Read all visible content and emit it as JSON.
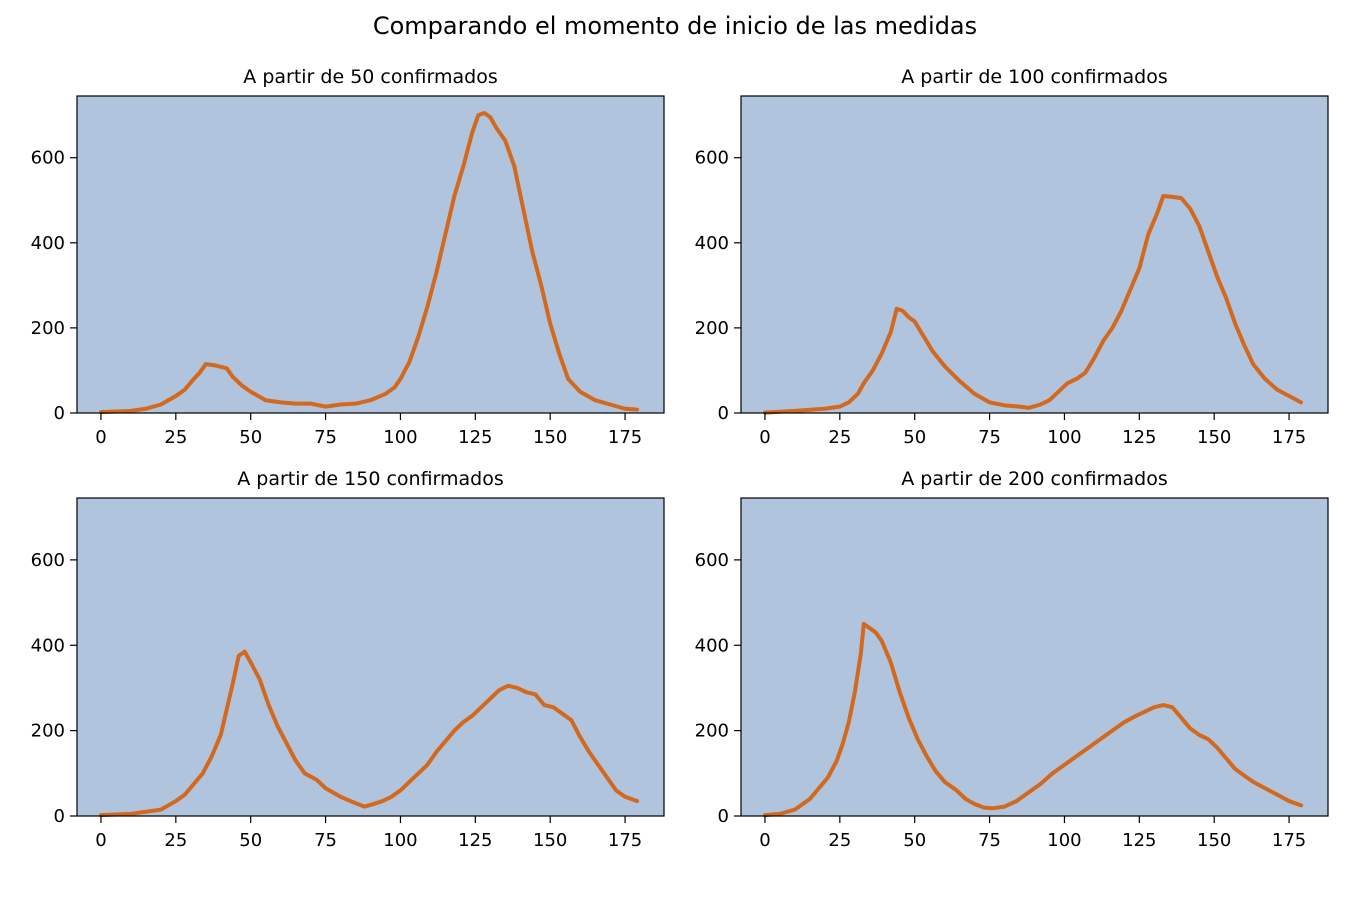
{
  "figure": {
    "title": "Comparando el momento de inicio de las medidas",
    "colors": {
      "plot_background": "#b0c4de",
      "line": "#d2691e"
    }
  },
  "chart_data": [
    {
      "type": "line",
      "title": "A partir de 50 confirmados",
      "xlabel": "",
      "ylabel": "",
      "xlim": [
        -8,
        188
      ],
      "ylim": [
        0,
        745
      ],
      "xticks": [
        0,
        25,
        50,
        75,
        100,
        125,
        150,
        175
      ],
      "yticks": [
        0,
        200,
        400,
        600
      ],
      "grid": false,
      "series": [
        {
          "points": [
            [
              0,
              2
            ],
            [
              10,
              5
            ],
            [
              15,
              10
            ],
            [
              20,
              20
            ],
            [
              25,
              40
            ],
            [
              28,
              55
            ],
            [
              31,
              80
            ],
            [
              33,
              95
            ],
            [
              35,
              115
            ],
            [
              38,
              112
            ],
            [
              42,
              105
            ],
            [
              44,
              85
            ],
            [
              47,
              65
            ],
            [
              50,
              50
            ],
            [
              55,
              30
            ],
            [
              60,
              25
            ],
            [
              65,
              22
            ],
            [
              70,
              22
            ],
            [
              75,
              15
            ],
            [
              80,
              20
            ],
            [
              85,
              22
            ],
            [
              90,
              30
            ],
            [
              95,
              45
            ],
            [
              98,
              60
            ],
            [
              100,
              80
            ],
            [
              103,
              120
            ],
            [
              106,
              180
            ],
            [
              109,
              250
            ],
            [
              112,
              330
            ],
            [
              115,
              420
            ],
            [
              118,
              510
            ],
            [
              121,
              580
            ],
            [
              124,
              660
            ],
            [
              126,
              700
            ],
            [
              128,
              705
            ],
            [
              130,
              695
            ],
            [
              132,
              670
            ],
            [
              135,
              640
            ],
            [
              138,
              580
            ],
            [
              141,
              480
            ],
            [
              144,
              380
            ],
            [
              147,
              300
            ],
            [
              150,
              210
            ],
            [
              153,
              140
            ],
            [
              156,
              80
            ],
            [
              160,
              50
            ],
            [
              165,
              30
            ],
            [
              170,
              20
            ],
            [
              175,
              10
            ],
            [
              179,
              8
            ]
          ]
        }
      ]
    },
    {
      "type": "line",
      "title": "A partir de 100 confirmados",
      "xlabel": "",
      "ylabel": "",
      "xlim": [
        -8,
        188
      ],
      "ylim": [
        0,
        745
      ],
      "xticks": [
        0,
        25,
        50,
        75,
        100,
        125,
        150,
        175
      ],
      "yticks": [
        0,
        200,
        400,
        600
      ],
      "grid": false,
      "series": [
        {
          "points": [
            [
              0,
              1
            ],
            [
              10,
              5
            ],
            [
              20,
              10
            ],
            [
              25,
              15
            ],
            [
              28,
              25
            ],
            [
              31,
              45
            ],
            [
              33,
              70
            ],
            [
              36,
              100
            ],
            [
              39,
              140
            ],
            [
              42,
              190
            ],
            [
              44,
              245
            ],
            [
              46,
              240
            ],
            [
              48,
              225
            ],
            [
              50,
              215
            ],
            [
              53,
              180
            ],
            [
              56,
              145
            ],
            [
              60,
              110
            ],
            [
              65,
              75
            ],
            [
              70,
              45
            ],
            [
              75,
              25
            ],
            [
              80,
              18
            ],
            [
              85,
              15
            ],
            [
              88,
              12
            ],
            [
              92,
              20
            ],
            [
              95,
              30
            ],
            [
              98,
              50
            ],
            [
              101,
              70
            ],
            [
              104,
              80
            ],
            [
              107,
              95
            ],
            [
              110,
              130
            ],
            [
              113,
              170
            ],
            [
              116,
              200
            ],
            [
              119,
              240
            ],
            [
              122,
              290
            ],
            [
              125,
              340
            ],
            [
              128,
              420
            ],
            [
              131,
              470
            ],
            [
              133,
              510
            ],
            [
              136,
              508
            ],
            [
              139,
              505
            ],
            [
              142,
              480
            ],
            [
              145,
              440
            ],
            [
              148,
              380
            ],
            [
              151,
              320
            ],
            [
              154,
              270
            ],
            [
              157,
              210
            ],
            [
              160,
              160
            ],
            [
              163,
              115
            ],
            [
              167,
              80
            ],
            [
              171,
              55
            ],
            [
              175,
              40
            ],
            [
              179,
              25
            ]
          ]
        }
      ]
    },
    {
      "type": "line",
      "title": "A partir de 150 confirmados",
      "xlabel": "",
      "ylabel": "",
      "xlim": [
        -8,
        188
      ],
      "ylim": [
        0,
        745
      ],
      "xticks": [
        0,
        25,
        50,
        75,
        100,
        125,
        150,
        175
      ],
      "yticks": [
        0,
        200,
        400,
        600
      ],
      "grid": false,
      "series": [
        {
          "points": [
            [
              0,
              2
            ],
            [
              10,
              5
            ],
            [
              15,
              10
            ],
            [
              20,
              15
            ],
            [
              25,
              35
            ],
            [
              28,
              50
            ],
            [
              31,
              75
            ],
            [
              34,
              100
            ],
            [
              37,
              140
            ],
            [
              40,
              190
            ],
            [
              42,
              250
            ],
            [
              44,
              310
            ],
            [
              46,
              375
            ],
            [
              48,
              385
            ],
            [
              50,
              360
            ],
            [
              53,
              320
            ],
            [
              56,
              260
            ],
            [
              59,
              210
            ],
            [
              62,
              170
            ],
            [
              65,
              130
            ],
            [
              68,
              100
            ],
            [
              72,
              85
            ],
            [
              75,
              65
            ],
            [
              80,
              45
            ],
            [
              85,
              30
            ],
            [
              88,
              22
            ],
            [
              91,
              28
            ],
            [
              94,
              35
            ],
            [
              97,
              45
            ],
            [
              100,
              60
            ],
            [
              103,
              80
            ],
            [
              106,
              100
            ],
            [
              109,
              120
            ],
            [
              112,
              150
            ],
            [
              115,
              175
            ],
            [
              118,
              200
            ],
            [
              121,
              220
            ],
            [
              124,
              235
            ],
            [
              127,
              255
            ],
            [
              130,
              275
            ],
            [
              133,
              295
            ],
            [
              136,
              305
            ],
            [
              139,
              300
            ],
            [
              142,
              290
            ],
            [
              145,
              285
            ],
            [
              148,
              260
            ],
            [
              151,
              255
            ],
            [
              154,
              240
            ],
            [
              157,
              225
            ],
            [
              160,
              185
            ],
            [
              163,
              150
            ],
            [
              166,
              120
            ],
            [
              169,
              90
            ],
            [
              172,
              60
            ],
            [
              175,
              45
            ],
            [
              179,
              35
            ]
          ]
        }
      ]
    },
    {
      "type": "line",
      "title": "A partir de 200 confirmados",
      "xlabel": "",
      "ylabel": "",
      "xlim": [
        -8,
        188
      ],
      "ylim": [
        0,
        745
      ],
      "xticks": [
        0,
        25,
        50,
        75,
        100,
        125,
        150,
        175
      ],
      "yticks": [
        0,
        200,
        400,
        600
      ],
      "grid": false,
      "series": [
        {
          "points": [
            [
              0,
              2
            ],
            [
              5,
              5
            ],
            [
              10,
              15
            ],
            [
              15,
              40
            ],
            [
              18,
              65
            ],
            [
              21,
              90
            ],
            [
              24,
              130
            ],
            [
              26,
              170
            ],
            [
              28,
              220
            ],
            [
              30,
              290
            ],
            [
              32,
              380
            ],
            [
              33,
              450
            ],
            [
              35,
              440
            ],
            [
              37,
              430
            ],
            [
              39,
              410
            ],
            [
              42,
              360
            ],
            [
              45,
              290
            ],
            [
              48,
              230
            ],
            [
              51,
              180
            ],
            [
              54,
              140
            ],
            [
              57,
              105
            ],
            [
              60,
              80
            ],
            [
              64,
              60
            ],
            [
              67,
              40
            ],
            [
              70,
              28
            ],
            [
              73,
              20
            ],
            [
              76,
              18
            ],
            [
              80,
              22
            ],
            [
              84,
              35
            ],
            [
              88,
              55
            ],
            [
              92,
              75
            ],
            [
              96,
              100
            ],
            [
              100,
              120
            ],
            [
              104,
              140
            ],
            [
              108,
              160
            ],
            [
              112,
              180
            ],
            [
              116,
              200
            ],
            [
              120,
              220
            ],
            [
              124,
              235
            ],
            [
              127,
              245
            ],
            [
              130,
              255
            ],
            [
              133,
              260
            ],
            [
              136,
              255
            ],
            [
              139,
              230
            ],
            [
              142,
              205
            ],
            [
              145,
              190
            ],
            [
              148,
              180
            ],
            [
              151,
              160
            ],
            [
              154,
              135
            ],
            [
              157,
              110
            ],
            [
              160,
              95
            ],
            [
              163,
              80
            ],
            [
              167,
              65
            ],
            [
              171,
              50
            ],
            [
              175,
              35
            ],
            [
              179,
              25
            ]
          ]
        }
      ]
    }
  ]
}
